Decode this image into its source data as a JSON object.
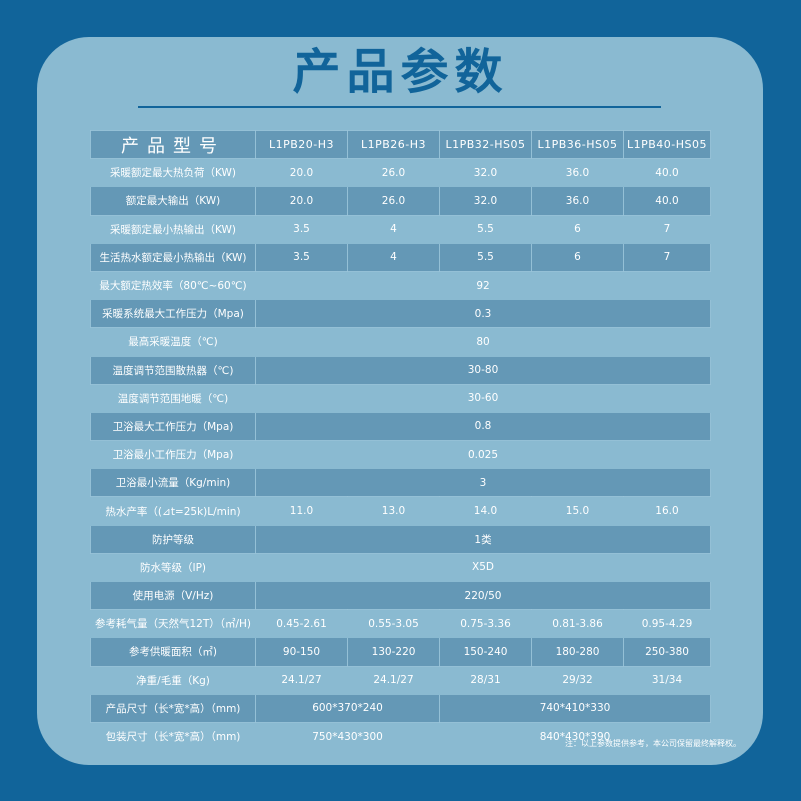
{
  "title": "产品参数",
  "header": {
    "label": "产品型号",
    "models": [
      "L1PB20-H3",
      "L1PB26-H3",
      "L1PB32-HS05",
      "L1PB36-HS05",
      "L1PB40-HS05"
    ]
  },
  "rows": [
    {
      "label": "采暖额定最大热负荷（KW)",
      "values": [
        "20.0",
        "26.0",
        "32.0",
        "36.0",
        "40.0"
      ]
    },
    {
      "label": "额定最大输出（KW)",
      "values": [
        "20.0",
        "26.0",
        "32.0",
        "36.0",
        "40.0"
      ]
    },
    {
      "label": "采暖额定最小热输出（KW)",
      "values": [
        "3.5",
        "4",
        "5.5",
        "6",
        "7"
      ]
    },
    {
      "label": "生活热水额定最小热输出（KW)",
      "values": [
        "3.5",
        "4",
        "5.5",
        "6",
        "7"
      ]
    },
    {
      "label": "最大额定热效率（80℃~60℃)",
      "value": "92"
    },
    {
      "label": "采暖系统最大工作压力（Mpa)",
      "value": "0.3"
    },
    {
      "label": "最高采暖温度（℃)",
      "value": "80"
    },
    {
      "label": "温度调节范围散热器（℃)",
      "value": "30-80"
    },
    {
      "label": "温度调节范围地暖（℃)",
      "value": "30-60"
    },
    {
      "label": "卫浴最大工作压力（Mpa)",
      "value": "0.8"
    },
    {
      "label": "卫浴最小工作压力（Mpa)",
      "value": "0.025"
    },
    {
      "label": "卫浴最小流量（Kg/min)",
      "value": "3"
    },
    {
      "label": "热水产率（(⊿t=25k)L/min)",
      "values": [
        "11.0",
        "13.0",
        "14.0",
        "15.0",
        "16.0"
      ]
    },
    {
      "label": "防护等级",
      "value": "1类"
    },
    {
      "label": "防水等级（IP)",
      "value": "X5D"
    },
    {
      "label": "使用电源（V/Hz)",
      "value": "220/50"
    },
    {
      "label": "参考耗气量（天然气12T）（㎡/H)",
      "values": [
        "0.45-2.61",
        "0.55-3.05",
        "0.75-3.36",
        "0.81-3.86",
        "0.95-4.29"
      ]
    },
    {
      "label": "参考供暖面积（㎡)",
      "values": [
        "90-150",
        "130-220",
        "150-240",
        "180-280",
        "250-380"
      ]
    },
    {
      "label": "净重/毛重（Kg)",
      "values": [
        "24.1/27",
        "24.1/27",
        "28/31",
        "29/32",
        "31/34"
      ]
    },
    {
      "label": "产品尺寸（长*宽*高）（mm)",
      "group1": "600*370*240",
      "group2": "740*410*330"
    },
    {
      "label": "包装尺寸（长*宽*高）（mm)",
      "group1": "750*430*300",
      "group2": "840*430*390"
    }
  ],
  "note": "注：以上参数提供参考，本公司保留最终解释权。"
}
